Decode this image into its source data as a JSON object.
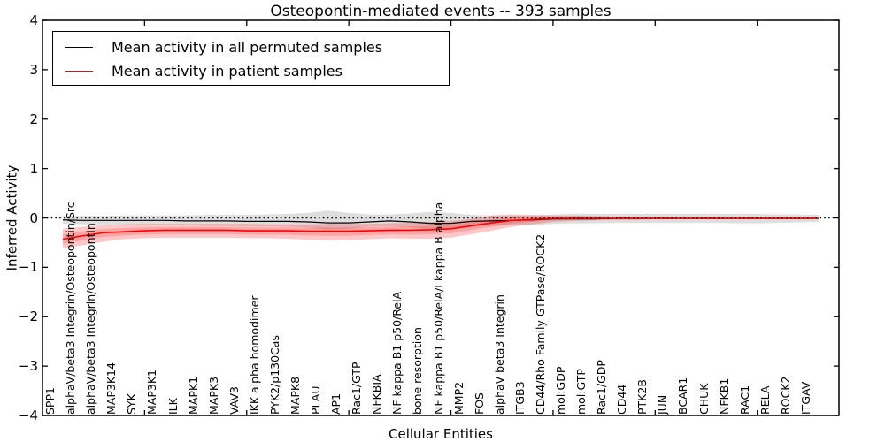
{
  "chart_data": {
    "type": "line",
    "title": "Osteopontin-mediated events -- 393 samples",
    "xlabel": "Cellular Entities",
    "ylabel": "Inferred Activity",
    "ylim": [
      -4,
      4
    ],
    "ytick_labels": [
      "4",
      "3",
      "2",
      "1",
      "0",
      "−1",
      "−2",
      "−3",
      "−4"
    ],
    "ytick_values": [
      4,
      3,
      2,
      1,
      0,
      -1,
      -2,
      -3,
      -4
    ],
    "grid": false,
    "legend_position": "upper-left",
    "zero_line": {
      "style": "dotted",
      "color": "#000000",
      "value": 0
    },
    "categories": [
      "SPP1",
      "alphaV/beta3 Integrin/Osteopontin/Src",
      "alphaV/beta3 Integrin/Osteopontin",
      "MAP3K14",
      "SYK",
      "MAP3K1",
      "ILK",
      "MAPK1",
      "MAPK3",
      "VAV3",
      "IKK alpha homodimer",
      "PYK2/p130Cas",
      "MAPK8",
      "PLAU",
      "AP1",
      "Rac1/GTP",
      "NFKBIA",
      "NF kappa B1 p50/RelA",
      "bone resorption",
      "NF kappa B1 p50/RelA/I kappa B alpha",
      "MMP2",
      "FOS",
      "alphaV beta3 Integrin",
      "ITGB3",
      "CD44/Rho Family GTPase/ROCK2",
      "mol:GDP",
      "mol:GTP",
      "Rac1/GDP",
      "CD44",
      "PTK2B",
      "JUN",
      "BCAR1",
      "CHUK",
      "NFKB1",
      "RAC1",
      "RELA",
      "ROCK2",
      "ITGAV"
    ],
    "series": [
      {
        "name": "Mean activity in all permuted samples",
        "color": "#000000",
        "values": [
          -0.04,
          -0.05,
          -0.05,
          -0.05,
          -0.05,
          -0.05,
          -0.06,
          -0.06,
          -0.06,
          -0.07,
          -0.07,
          -0.07,
          -0.08,
          -0.1,
          -0.1,
          -0.08,
          -0.06,
          -0.08,
          -0.11,
          -0.11,
          -0.07,
          -0.06,
          -0.05,
          -0.04,
          -0.02,
          -0.02,
          -0.02,
          -0.01,
          -0.01,
          -0.01,
          -0.01,
          -0.01,
          -0.01,
          -0.01,
          -0.01,
          -0.01,
          -0.01,
          -0.01
        ]
      },
      {
        "name": "Mean activity in patient samples",
        "color": "#ff0000",
        "values": [
          -0.43,
          -0.36,
          -0.3,
          -0.28,
          -0.26,
          -0.25,
          -0.25,
          -0.25,
          -0.25,
          -0.26,
          -0.26,
          -0.26,
          -0.27,
          -0.27,
          -0.27,
          -0.26,
          -0.25,
          -0.25,
          -0.24,
          -0.22,
          -0.16,
          -0.1,
          -0.05,
          -0.03,
          -0.01,
          -0.01,
          -0.01,
          -0.01,
          -0.01,
          -0.01,
          -0.01,
          -0.01,
          -0.01,
          -0.01,
          -0.01,
          -0.01,
          -0.01,
          -0.01
        ]
      }
    ],
    "bands": [
      {
        "name": "permuted samples range",
        "color": "#999999",
        "opacity": 0.32,
        "upper": [
          0.04,
          0.04,
          0.04,
          0.05,
          0.05,
          0.05,
          0.05,
          0.06,
          0.06,
          0.06,
          0.07,
          0.08,
          0.1,
          0.15,
          0.1,
          0.07,
          0.07,
          0.09,
          0.12,
          0.1,
          0.06,
          0.05,
          0.05,
          0.05,
          0.07,
          0.08,
          0.08,
          0.08,
          0.08,
          0.08,
          0.08,
          0.08,
          0.08,
          0.08,
          0.08,
          0.07,
          0.07,
          0.06
        ],
        "lower": [
          -0.12,
          -0.13,
          -0.13,
          -0.14,
          -0.14,
          -0.15,
          -0.15,
          -0.16,
          -0.16,
          -0.17,
          -0.17,
          -0.18,
          -0.2,
          -0.24,
          -0.22,
          -0.18,
          -0.17,
          -0.19,
          -0.23,
          -0.22,
          -0.18,
          -0.16,
          -0.15,
          -0.14,
          -0.12,
          -0.11,
          -0.11,
          -0.1,
          -0.1,
          -0.1,
          -0.1,
          -0.1,
          -0.1,
          -0.11,
          -0.11,
          -0.1,
          -0.09,
          -0.08
        ]
      },
      {
        "name": "patient samples range",
        "color": "#ff0000",
        "opacity": 0.22,
        "upper": [
          -0.22,
          -0.18,
          -0.15,
          -0.13,
          -0.12,
          -0.12,
          -0.12,
          -0.12,
          -0.12,
          -0.12,
          -0.13,
          -0.13,
          -0.13,
          -0.12,
          -0.12,
          -0.12,
          -0.11,
          -0.1,
          -0.08,
          -0.06,
          -0.02,
          0.05,
          0.07,
          0.06,
          0.05,
          0.05,
          0.04,
          0.03,
          0.03,
          0.02,
          0.02,
          0.02,
          0.02,
          0.02,
          0.02,
          0.02,
          0.02,
          0.02
        ],
        "lower": [
          -0.62,
          -0.55,
          -0.48,
          -0.43,
          -0.41,
          -0.4,
          -0.4,
          -0.4,
          -0.4,
          -0.41,
          -0.41,
          -0.42,
          -0.44,
          -0.46,
          -0.45,
          -0.43,
          -0.41,
          -0.42,
          -0.42,
          -0.4,
          -0.33,
          -0.26,
          -0.18,
          -0.13,
          -0.08,
          -0.06,
          -0.05,
          -0.04,
          -0.04,
          -0.03,
          -0.03,
          -0.03,
          -0.03,
          -0.03,
          -0.03,
          -0.03,
          -0.03,
          -0.02
        ]
      }
    ]
  }
}
